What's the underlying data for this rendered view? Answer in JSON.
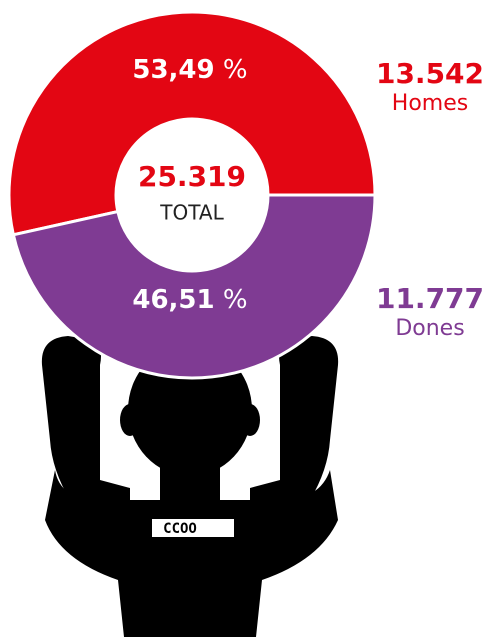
{
  "chart_data": {
    "type": "pie",
    "categories": [
      "Homes",
      "Dones"
    ],
    "values": [
      53.49,
      46.51
    ],
    "value_labels": [
      "53,49 %",
      "46,51 %"
    ],
    "colors": [
      "#e30613",
      "#7f3b93"
    ],
    "counts": [
      13542,
      11777
    ],
    "count_labels": [
      "13.542",
      "11.777"
    ],
    "total": 25319,
    "total_label": "25.319",
    "total_text": "TOTAL",
    "logo": "CCOO"
  }
}
